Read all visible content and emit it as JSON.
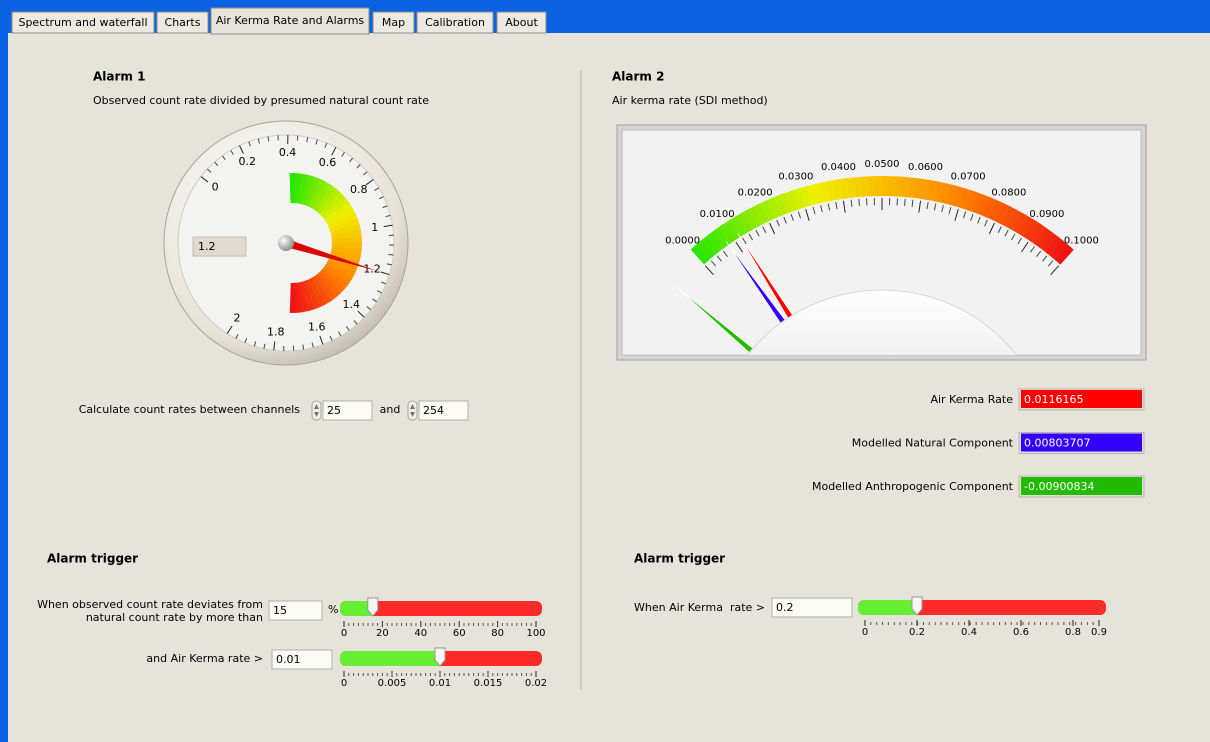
{
  "tabs": {
    "items": [
      "Spectrum and waterfall",
      "Charts",
      "Air Kerma Rate and Alarms",
      "Map",
      "Calibration",
      "About"
    ],
    "active": 2
  },
  "alarm1": {
    "title": "Alarm 1",
    "subtitle": "Observed count rate divided by presumed natural count rate",
    "gauge": {
      "ticks": [
        0,
        0.2,
        0.4,
        0.6,
        0.8,
        1,
        1.2,
        1.4,
        1.6,
        1.8,
        2
      ],
      "value": 1.2
    },
    "channels": {
      "label": "Calculate count rates between channels",
      "from": 25,
      "joiner": "and",
      "to": 254
    }
  },
  "alarm2": {
    "title": "Alarm 2",
    "subtitle": "Air kerma rate (SDI method)",
    "meter": {
      "ticks": [
        {
          "value": 0,
          "label": "0.0000"
        },
        {
          "value": 0.01,
          "label": "0.0100"
        },
        {
          "value": 0.02,
          "label": "0.0200"
        },
        {
          "value": 0.03,
          "label": "0.0300"
        },
        {
          "value": 0.04,
          "label": "0.0400"
        },
        {
          "value": 0.05,
          "label": "0.0500"
        },
        {
          "value": 0.06,
          "label": "0.0600"
        },
        {
          "value": 0.07,
          "label": "0.0700"
        },
        {
          "value": 0.08,
          "label": "0.0800"
        },
        {
          "value": 0.09,
          "label": "0.0900"
        },
        {
          "value": 0.1,
          "label": "0.1000"
        }
      ]
    },
    "readouts": [
      {
        "label": "Air Kerma Rate",
        "value": 0.0116165,
        "color": "#ff0000"
      },
      {
        "label": "Modelled Natural Component",
        "value": 0.00803707,
        "color": "#3300ff"
      },
      {
        "label": "Modelled Anthropogenic Component",
        "value": -0.00900834,
        "color": "#22bb00"
      }
    ]
  },
  "trigger1": {
    "title": "Alarm trigger",
    "deviation": {
      "label": [
        "When observed count rate deviates from",
        "natural count rate by more than"
      ],
      "value": 15,
      "unit": "%",
      "ticks": [
        0,
        20,
        40,
        60,
        80,
        100
      ]
    },
    "kerma": {
      "label": "and Air Kerma rate >",
      "value": 0.01,
      "ticks": [
        0,
        0.005,
        0.01,
        0.015,
        0.02
      ]
    }
  },
  "trigger2": {
    "title": "Alarm trigger",
    "kerma": {
      "label": "When Air Kerma  rate >",
      "value": 0.2,
      "ticks": [
        0,
        0.2,
        0.4,
        0.6,
        0.8,
        0.9
      ]
    }
  }
}
